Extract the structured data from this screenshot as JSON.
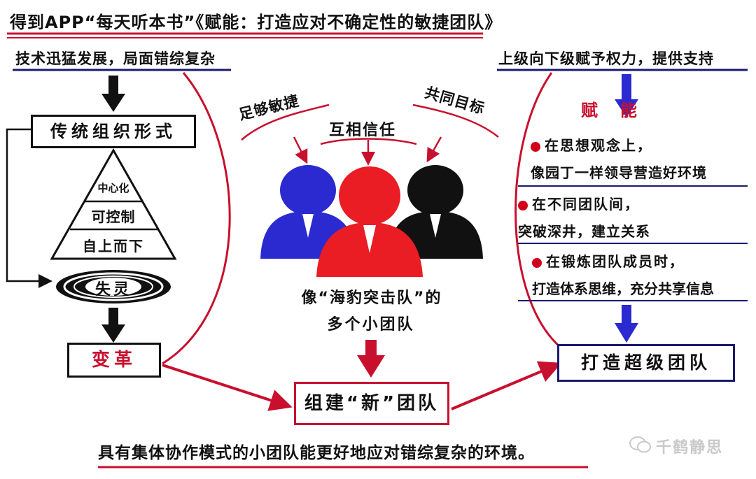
{
  "title": "得到APP“每天听本书”《赋能：打造应对不确定性的敏捷团队》",
  "left": {
    "top_label": "技术迅猛发展，局面错综复杂",
    "traditional_box": "传统组织形式",
    "pyramid": [
      "中心化",
      "可控制",
      "自上而下"
    ],
    "fail_label": "失灵",
    "change_label": "变革"
  },
  "center": {
    "traits": [
      "足够敏捷",
      "互相信任",
      "共同目标"
    ],
    "caption_line1": "像“海豹突击队”的",
    "caption_line2": "多个小团队",
    "new_team": "组建“新”团队"
  },
  "right": {
    "top_label": "上级向下级赋予权力，提供支持",
    "empower_label": "赋　能",
    "bullets": [
      {
        "line1": "在思想观念上，",
        "line2": "像园丁一样领导营造好环境"
      },
      {
        "line1": "在不同团队间，",
        "line2": "突破深井，建立关系"
      },
      {
        "line1": "在锻炼团队成员时，",
        "line2": "打造体系思维，充分共享信息"
      }
    ],
    "super_team": "打造超级团队"
  },
  "conclusion": "具有集体协作模式的小团队能更好地应对错综复杂的环境。",
  "watermark": "千鹤静思",
  "colors": {
    "red": "#c8102e",
    "blue": "#2a2ad0",
    "navy": "#1a1a6e",
    "black": "#111111"
  }
}
